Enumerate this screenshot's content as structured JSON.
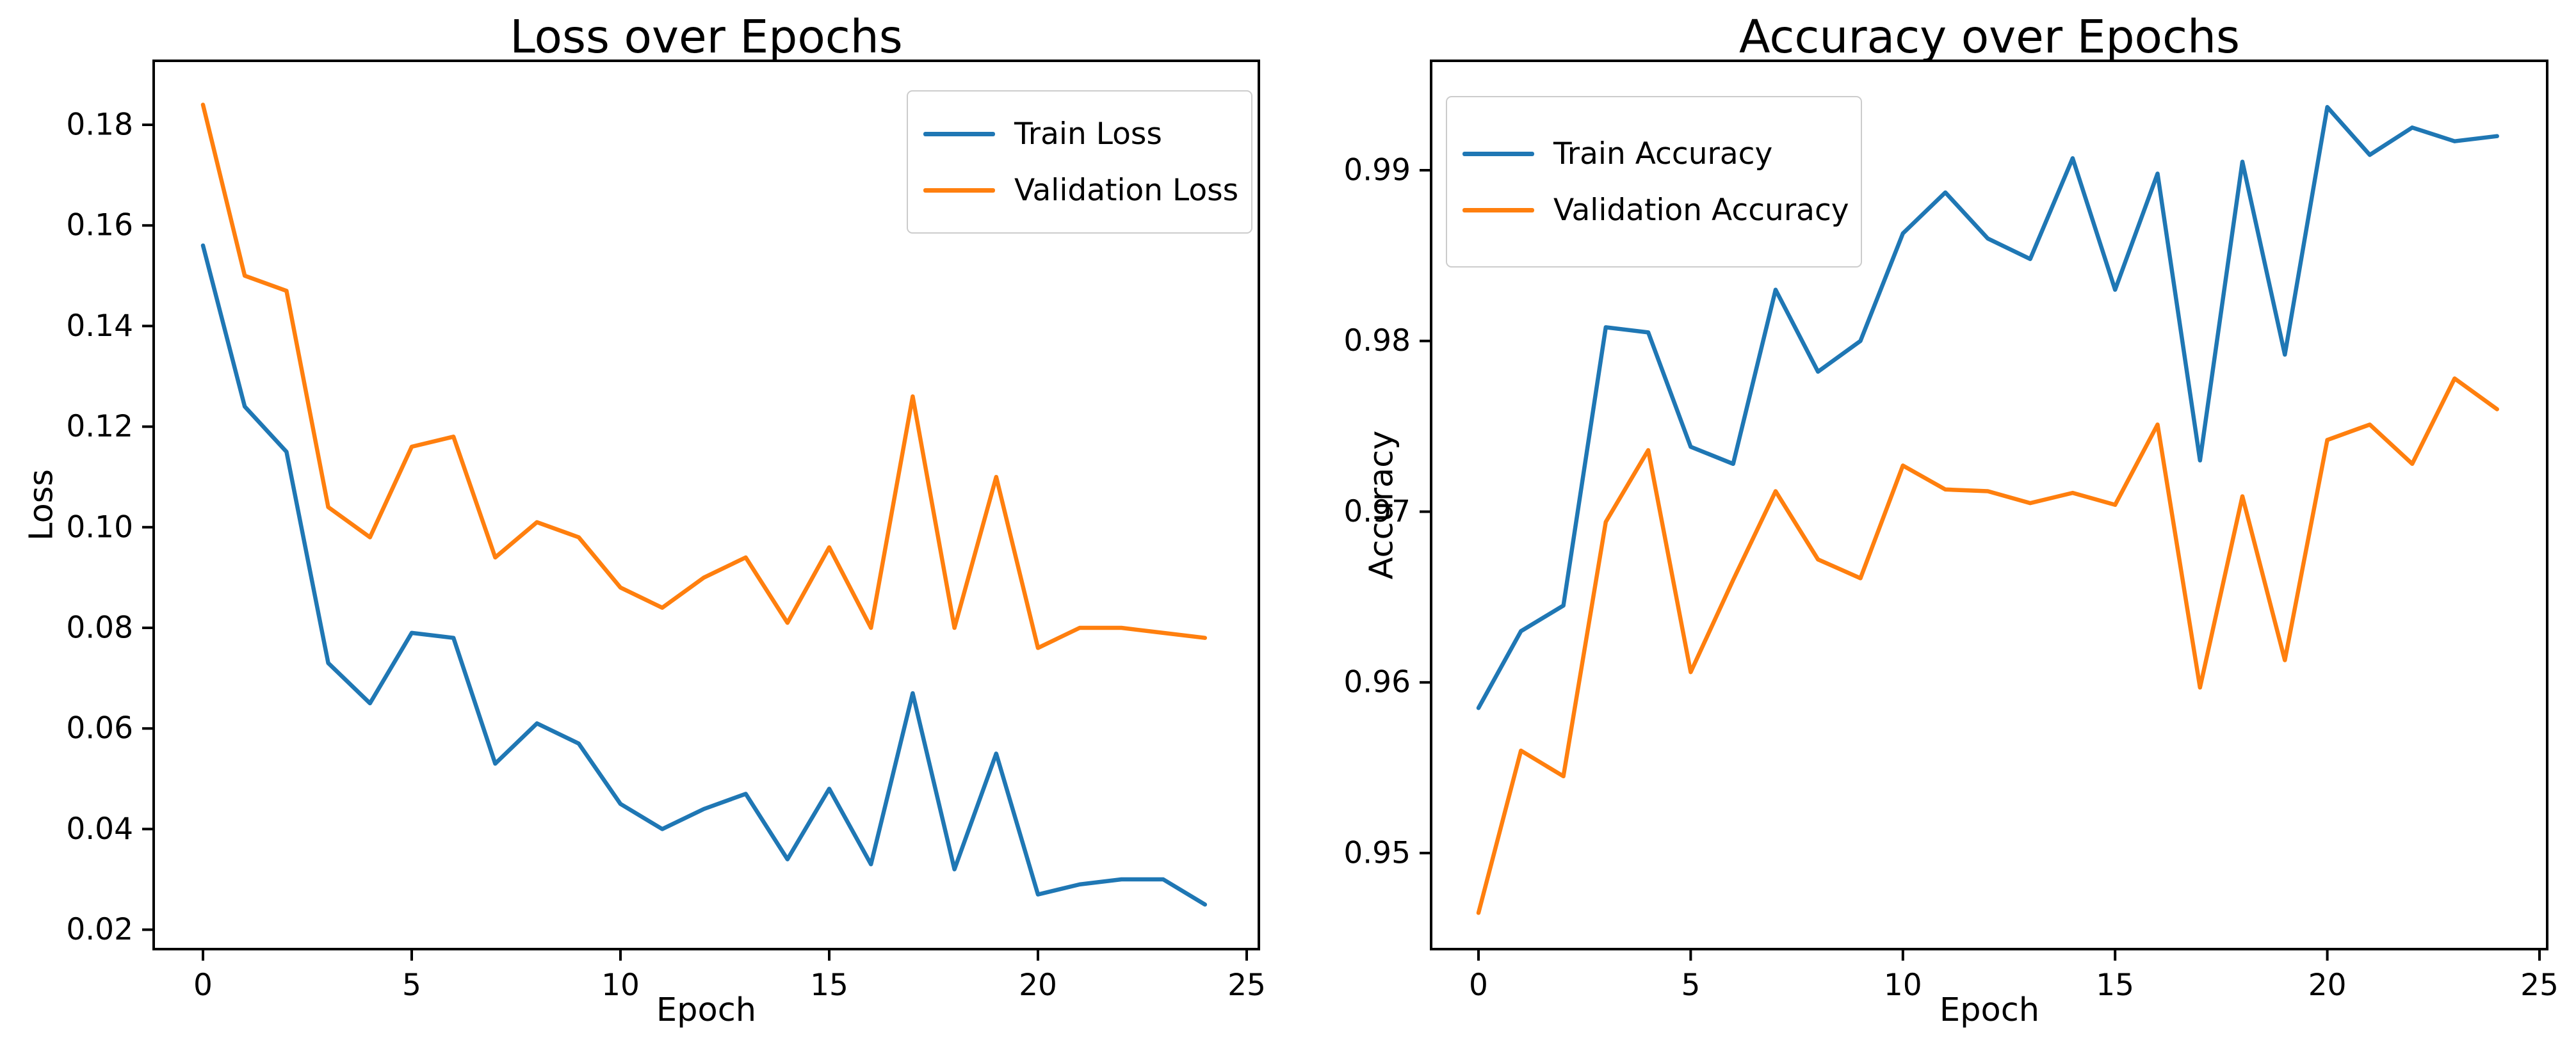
{
  "figure": {
    "background": "#ffffff",
    "text_color": "#000000"
  },
  "chart_data": [
    {
      "id": "loss",
      "type": "line",
      "title": "Loss over Epochs",
      "xlabel": "Epoch",
      "ylabel": "Loss",
      "legend_position": "upper right",
      "grid": false,
      "x": [
        0,
        1,
        2,
        3,
        4,
        5,
        6,
        7,
        8,
        9,
        10,
        11,
        12,
        13,
        14,
        15,
        16,
        17,
        18,
        19,
        20,
        21,
        22,
        23,
        24
      ],
      "x_ticks": [
        0,
        5,
        10,
        15,
        20,
        25
      ],
      "x_tick_labels": [
        "0",
        "5",
        "10",
        "15",
        "20",
        "25"
      ],
      "y_ticks": [
        0.02,
        0.04,
        0.06,
        0.08,
        0.1,
        0.12,
        0.14,
        0.16,
        0.18
      ],
      "y_tick_labels": [
        "0.02",
        "0.04",
        "0.06",
        "0.08",
        "0.10",
        "0.12",
        "0.14",
        "0.16",
        "0.18"
      ],
      "ylim": [
        0.016,
        0.193
      ],
      "xlim": [
        -1.2,
        26.2
      ],
      "series": [
        {
          "name": "Train Loss",
          "color": "#1f77b4",
          "values": [
            0.156,
            0.124,
            0.115,
            0.073,
            0.065,
            0.079,
            0.078,
            0.053,
            0.061,
            0.057,
            0.045,
            0.04,
            0.044,
            0.047,
            0.034,
            0.048,
            0.033,
            0.067,
            0.032,
            0.055,
            0.027,
            0.029,
            0.03,
            0.03,
            0.025
          ]
        },
        {
          "name": "Validation Loss",
          "color": "#ff7f0e",
          "values": [
            0.184,
            0.15,
            0.147,
            0.104,
            0.098,
            0.116,
            0.118,
            0.094,
            0.101,
            0.098,
            0.088,
            0.084,
            0.09,
            0.094,
            0.081,
            0.096,
            0.08,
            0.126,
            0.08,
            0.11,
            0.076,
            0.08,
            0.08,
            0.079,
            0.078
          ]
        }
      ]
    },
    {
      "id": "accuracy",
      "type": "line",
      "title": "Accuracy over Epochs",
      "xlabel": "Epoch",
      "ylabel": "Accuracy",
      "legend_position": "upper left",
      "grid": false,
      "x": [
        0,
        1,
        2,
        3,
        4,
        5,
        6,
        7,
        8,
        9,
        10,
        11,
        12,
        13,
        14,
        15,
        16,
        17,
        18,
        19,
        20,
        21,
        22,
        23,
        24
      ],
      "x_ticks": [
        0,
        5,
        10,
        15,
        20,
        25
      ],
      "x_tick_labels": [
        "0",
        "5",
        "10",
        "15",
        "20",
        "25"
      ],
      "y_ticks": [
        0.95,
        0.96,
        0.97,
        0.98,
        0.99
      ],
      "y_tick_labels": [
        "0.95",
        "0.96",
        "0.97",
        "0.98",
        "0.99"
      ],
      "ylim": [
        0.944,
        0.9964
      ],
      "xlim": [
        -1.2,
        26.2
      ],
      "series": [
        {
          "name": "Train Accuracy",
          "color": "#1f77b4",
          "values": [
            0.9585,
            0.963,
            0.9645,
            0.9808,
            0.9805,
            0.9738,
            0.9728,
            0.983,
            0.9782,
            0.98,
            0.9863,
            0.9887,
            0.986,
            0.9848,
            0.9907,
            0.983,
            0.9898,
            0.973,
            0.9905,
            0.9792,
            0.9937,
            0.9909,
            0.9925,
            0.9917,
            0.992
          ]
        },
        {
          "name": "Validation Accuracy",
          "color": "#ff7f0e",
          "values": [
            0.9465,
            0.956,
            0.9545,
            0.9694,
            0.9736,
            0.9606,
            0.966,
            0.9712,
            0.9672,
            0.9661,
            0.9727,
            0.9713,
            0.9712,
            0.9705,
            0.9711,
            0.9704,
            0.9751,
            0.9597,
            0.9709,
            0.9613,
            0.9742,
            0.9751,
            0.9728,
            0.9778,
            0.976
          ]
        }
      ]
    }
  ]
}
